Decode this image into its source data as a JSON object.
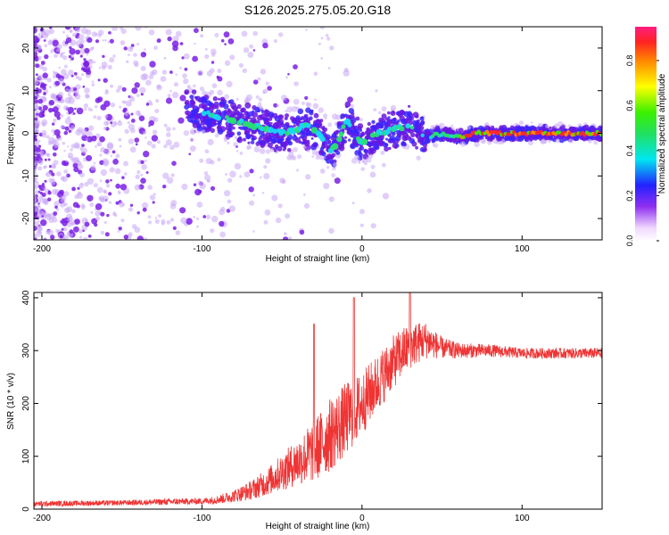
{
  "title": "S126.2025.275.05.20.G18",
  "colors": {
    "snr_line": "#ef3434",
    "scatter_base": "#7a1fe6",
    "frame": "#000000"
  },
  "chart_data": [
    {
      "type": "heatmap",
      "xlabel": "Height of straight line (km)",
      "ylabel": "Frequency (Hz)",
      "xlim": [
        -205,
        150
      ],
      "ylim": [
        -25,
        25
      ],
      "xticks": [
        -200,
        -100,
        0,
        100
      ],
      "yticks": [
        -20,
        -10,
        0,
        10,
        20
      ],
      "colorbar": {
        "label": "Normalized spectral amplitude",
        "range": [
          0.0,
          0.95
        ],
        "ticks": [
          "0.0",
          "0.2",
          "0.4",
          "0.6",
          "0.8"
        ],
        "tick_values": [
          0.0,
          0.2,
          0.4,
          0.6,
          0.8
        ]
      },
      "ridge": {
        "x": [
          -205,
          -150,
          -100,
          -90,
          -80,
          -70,
          -60,
          -50,
          -40,
          -35,
          -30,
          -25,
          -20,
          -15,
          -10,
          -5,
          0,
          5,
          10,
          20,
          30,
          40,
          50,
          60,
          70,
          80,
          100,
          120,
          150
        ],
        "y": [
          10,
          8,
          5,
          4,
          3,
          2,
          1,
          0,
          1,
          2,
          1,
          -1,
          -4,
          -2,
          3,
          0,
          -2,
          -1,
          0,
          1,
          2,
          -1,
          0,
          -1,
          0,
          0,
          0,
          0,
          0
        ]
      },
      "grid": false,
      "legend": "right"
    },
    {
      "type": "line",
      "xlabel": "Height of straight line (km)",
      "ylabel": "SNR (10 * v/v)",
      "xlim": [
        -205,
        150
      ],
      "ylim": [
        0,
        410
      ],
      "xticks": [
        -200,
        -100,
        0,
        100
      ],
      "yticks": [
        0,
        100,
        200,
        300,
        400
      ],
      "envelope": {
        "x": [
          -205,
          -150,
          -120,
          -100,
          -90,
          -80,
          -70,
          -60,
          -50,
          -40,
          -30,
          -20,
          -10,
          0,
          10,
          20,
          30,
          40,
          50,
          60,
          80,
          100,
          120,
          150
        ],
        "mean": [
          10,
          12,
          14,
          15,
          18,
          25,
          35,
          50,
          70,
          90,
          110,
          140,
          170,
          200,
          240,
          280,
          310,
          320,
          305,
          300,
          300,
          295,
          295,
          295
        ],
        "amplitude": [
          5,
          5,
          6,
          6,
          8,
          12,
          18,
          25,
          35,
          45,
          60,
          70,
          70,
          60,
          55,
          50,
          45,
          35,
          20,
          15,
          12,
          10,
          10,
          10
        ]
      },
      "spikes": [
        {
          "x": -30,
          "y": 350
        },
        {
          "x": -5,
          "y": 400
        },
        {
          "x": 30,
          "y": 410
        }
      ],
      "grid": false
    }
  ]
}
